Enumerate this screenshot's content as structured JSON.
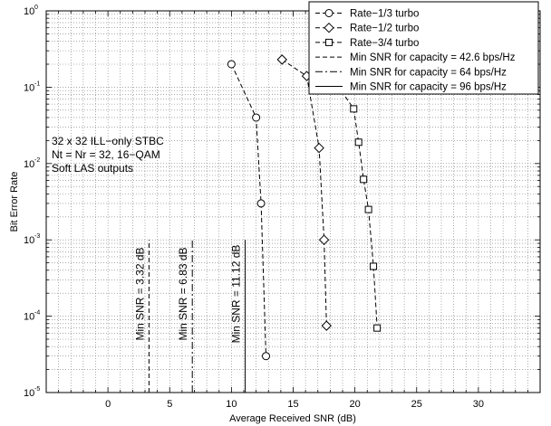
{
  "chart_data": {
    "type": "line",
    "title": "",
    "xlabel": "Average Received SNR (dB)",
    "ylabel": "Bit Error Rate",
    "xlim": [
      -5,
      35
    ],
    "ylim": [
      1e-05,
      1
    ],
    "yscale": "log",
    "grid": true,
    "x_ticks": [
      "0",
      "5",
      "10",
      "15",
      "20",
      "25",
      "30"
    ],
    "y_ticks": [
      {
        "base": "10",
        "exp": "0"
      },
      {
        "base": "10",
        "exp": "-1"
      },
      {
        "base": "10",
        "exp": "-2"
      },
      {
        "base": "10",
        "exp": "-3"
      },
      {
        "base": "10",
        "exp": "-4"
      },
      {
        "base": "10",
        "exp": "-5"
      }
    ],
    "legend_position": "top-right",
    "annotation": [
      "32 x 32 ILL−only STBC",
      "Nt = Nr = 32, 16−QAM",
      "Soft LAS outputs"
    ],
    "series": [
      {
        "name": "Rate−1/3 turbo",
        "marker": "circle",
        "line": "dashed",
        "x": [
          10,
          12,
          12.4,
          12.8
        ],
        "y": [
          0.2,
          0.04,
          0.003,
          3e-05
        ]
      },
      {
        "name": "Rate−1/2 turbo",
        "marker": "diamond",
        "line": "dashed",
        "x": [
          14.1,
          16.1,
          17.1,
          17.5,
          17.7
        ],
        "y": [
          0.23,
          0.14,
          0.016,
          0.001,
          7.5e-05
        ]
      },
      {
        "name": "Rate−3/4 turbo",
        "marker": "square",
        "line": "dashed",
        "x": [
          18.9,
          19.9,
          20.3,
          20.7,
          21.1,
          21.5,
          21.8
        ],
        "y": [
          0.09,
          0.052,
          0.019,
          0.0062,
          0.0025,
          0.00045,
          7e-05
        ]
      },
      {
        "name": "Min SNR for capacity = 42.6 bps/Hz",
        "marker": "none",
        "line": "dashed",
        "x": [
          3.32,
          3.32
        ],
        "y": [
          1e-05,
          0.001
        ],
        "label": "Min SNR = 3.32 dB"
      },
      {
        "name": "Min SNR for capacity = 64 bps/Hz",
        "marker": "none",
        "line": "dashdot",
        "x": [
          6.83,
          6.83
        ],
        "y": [
          1e-05,
          0.001
        ],
        "label": "Min SNR = 6.83 dB"
      },
      {
        "name": "Min SNR for capacity = 96 bps/Hz",
        "marker": "none",
        "line": "solid",
        "x": [
          11.12,
          11.12
        ],
        "y": [
          1e-05,
          0.001
        ],
        "label": "Min SNR = 11.12 dB"
      }
    ]
  }
}
